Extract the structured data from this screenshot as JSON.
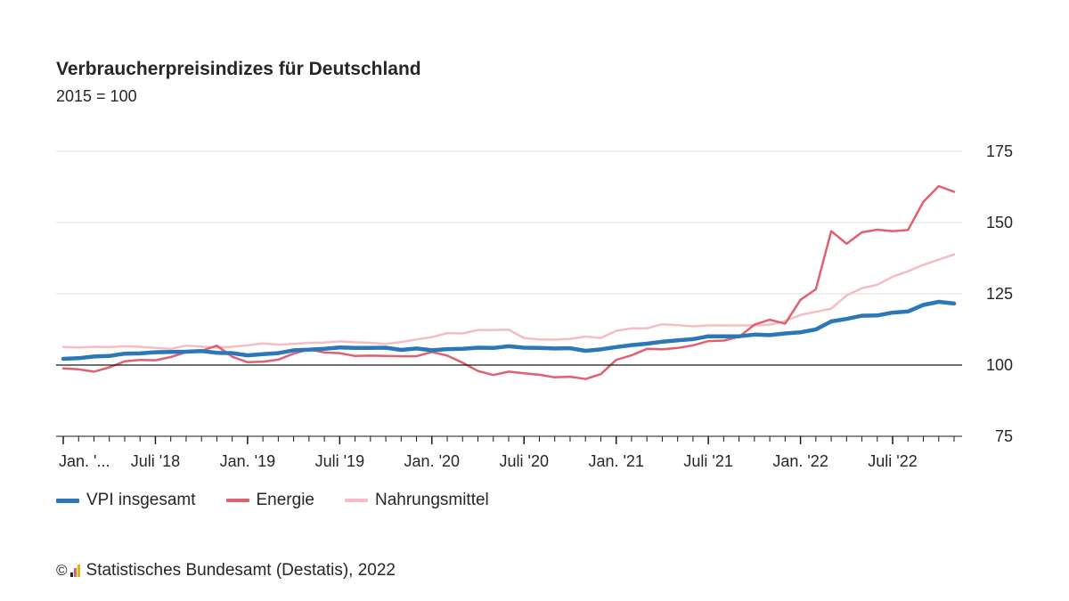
{
  "title": "Verbraucherpreisindizes für Deutschland",
  "subtitle": "2015 = 100",
  "source": "Statistisches Bundesamt (Destatis), 2022",
  "copyright": "©",
  "colors": {
    "vpi": "#2b77b8",
    "energie": "#e0606f",
    "nahrung": "#f4bcc3",
    "grid": "#dcdcdc",
    "baseline": "#1a1a1a",
    "text": "#262626"
  },
  "chart_data": {
    "type": "line",
    "y_axis_position": "right",
    "ylim": [
      75,
      175
    ],
    "yticks": [
      75,
      100,
      125,
      150,
      175
    ],
    "baseline": 100,
    "grid": true,
    "legend_position": "bottom-left",
    "x": [
      "2018-01",
      "2018-02",
      "2018-03",
      "2018-04",
      "2018-05",
      "2018-06",
      "2018-07",
      "2018-08",
      "2018-09",
      "2018-10",
      "2018-11",
      "2018-12",
      "2019-01",
      "2019-02",
      "2019-03",
      "2019-04",
      "2019-05",
      "2019-06",
      "2019-07",
      "2019-08",
      "2019-09",
      "2019-10",
      "2019-11",
      "2019-12",
      "2020-01",
      "2020-02",
      "2020-03",
      "2020-04",
      "2020-05",
      "2020-06",
      "2020-07",
      "2020-08",
      "2020-09",
      "2020-10",
      "2020-11",
      "2020-12",
      "2021-01",
      "2021-02",
      "2021-03",
      "2021-04",
      "2021-05",
      "2021-06",
      "2021-07",
      "2021-08",
      "2021-09",
      "2021-10",
      "2021-11",
      "2021-12",
      "2022-01",
      "2022-02",
      "2022-03",
      "2022-04",
      "2022-05",
      "2022-06",
      "2022-07",
      "2022-08",
      "2022-09",
      "2022-10",
      "2022-11"
    ],
    "xtick_labels": [
      {
        "index": 0,
        "label": "Jan. '..."
      },
      {
        "index": 6,
        "label": "Juli '18"
      },
      {
        "index": 12,
        "label": "Jan. '19"
      },
      {
        "index": 18,
        "label": "Juli '19"
      },
      {
        "index": 24,
        "label": "Jan. '20"
      },
      {
        "index": 30,
        "label": "Juli '20"
      },
      {
        "index": 36,
        "label": "Jan. '21"
      },
      {
        "index": 42,
        "label": "Juli '21"
      },
      {
        "index": 48,
        "label": "Jan. '22"
      },
      {
        "index": 54,
        "label": "Juli '22"
      }
    ],
    "series": [
      {
        "name": "VPI insgesamt",
        "color": "#2b77b8",
        "width": 4.5,
        "values": [
          102.2,
          102.4,
          103.0,
          103.2,
          104.0,
          104.1,
          104.5,
          104.6,
          104.7,
          104.9,
          104.3,
          104.2,
          103.4,
          103.8,
          104.2,
          105.2,
          105.4,
          105.7,
          106.2,
          106.0,
          106.0,
          106.1,
          105.3,
          105.8,
          105.2,
          105.6,
          105.7,
          106.1,
          106.0,
          106.6,
          106.1,
          106.0,
          105.8,
          105.9,
          105.0,
          105.5,
          106.3,
          107.0,
          107.5,
          108.2,
          108.7,
          109.1,
          110.1,
          110.1,
          110.1,
          110.7,
          110.5,
          111.1,
          111.5,
          112.5,
          115.3,
          116.2,
          117.3,
          117.4,
          118.4,
          118.8,
          121.1,
          122.2,
          121.6
        ]
      },
      {
        "name": "Energie",
        "color": "#e0606f",
        "width": 2.5,
        "values": [
          98.8,
          98.5,
          97.7,
          99.2,
          101.3,
          101.8,
          101.7,
          102.8,
          104.5,
          105.0,
          106.8,
          102.9,
          101.0,
          101.2,
          101.9,
          104.0,
          105.5,
          104.4,
          104.2,
          103.2,
          103.3,
          103.2,
          103.1,
          103.1,
          104.6,
          103.3,
          100.8,
          97.9,
          96.5,
          97.7,
          97.1,
          96.6,
          95.7,
          95.9,
          95.1,
          96.8,
          101.8,
          103.4,
          105.7,
          105.5,
          106.0,
          106.9,
          108.4,
          108.6,
          109.9,
          114.2,
          115.9,
          114.5,
          122.9,
          126.6,
          147.0,
          142.6,
          146.6,
          147.5,
          147.0,
          147.4,
          157.3,
          162.8,
          160.8
        ]
      },
      {
        "name": "Nahrungsmittel",
        "color": "#f4bcc3",
        "width": 2.5,
        "values": [
          106.3,
          106.2,
          106.4,
          106.3,
          106.6,
          106.4,
          106.0,
          105.7,
          106.8,
          106.5,
          106.2,
          106.4,
          106.9,
          107.6,
          107.2,
          107.4,
          107.8,
          107.9,
          108.3,
          108.0,
          107.8,
          107.4,
          108.1,
          109.0,
          109.8,
          111.2,
          111.1,
          112.3,
          112.3,
          112.4,
          109.5,
          109.0,
          108.9,
          109.2,
          110.0,
          109.5,
          112.0,
          112.9,
          112.9,
          114.3,
          114.0,
          113.6,
          113.9,
          113.9,
          113.9,
          113.9,
          114.2,
          115.4,
          117.6,
          118.7,
          119.8,
          124.4,
          127.0,
          128.2,
          131.0,
          132.9,
          135.2,
          137.0,
          138.8
        ]
      }
    ]
  }
}
